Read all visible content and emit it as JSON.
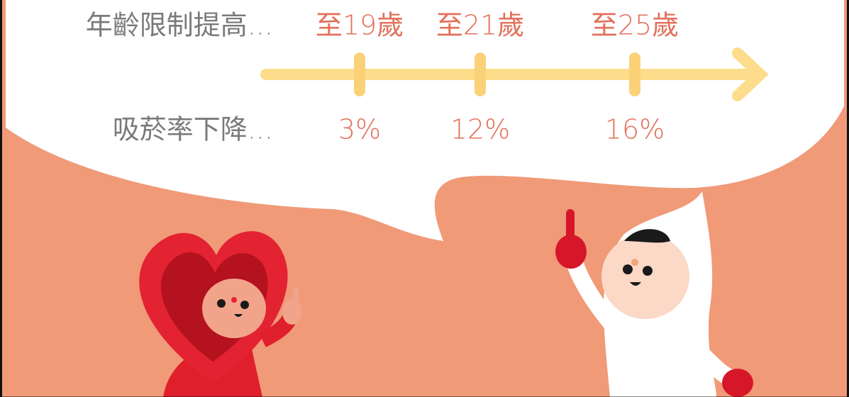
{
  "timeline": {
    "row_labels": [
      "年齡限制提高...",
      "吸菸率下降..."
    ],
    "steps": [
      {
        "age": "至19歲",
        "drop": "3%"
      },
      {
        "age": "至21歲",
        "drop": "12%"
      },
      {
        "age": "至25歲",
        "drop": "16%"
      }
    ]
  }
}
